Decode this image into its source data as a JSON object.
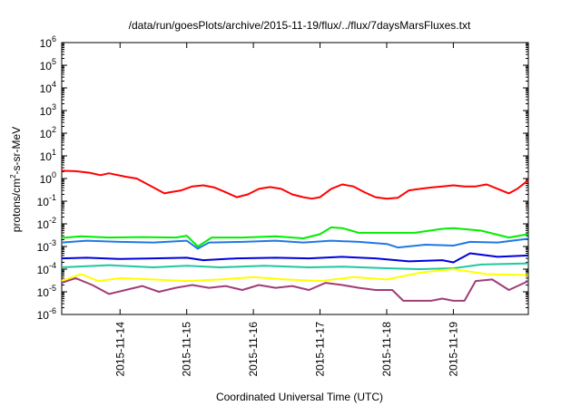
{
  "chart_data": {
    "type": "line",
    "title": "/data/run/goesPlots/archive/2015-11-19/flux/../flux/7daysMarsFluxes.txt",
    "xlabel": "Coordinated Universal Time (UTC)",
    "ylabel": "protons/cm²-s-sr-MeV",
    "ylabel_parts": {
      "base": "protons/cm",
      "sup": "2",
      "rest": "-s-sr-MeV"
    },
    "y_scale": "log",
    "ylim": [
      1e-06,
      1000000.0
    ],
    "y_ticks": [
      {
        "value": 1e-06,
        "base": "10",
        "exp": "-6"
      },
      {
        "value": 1e-05,
        "base": "10",
        "exp": "-5"
      },
      {
        "value": 0.0001,
        "base": "10",
        "exp": "-4"
      },
      {
        "value": 0.001,
        "base": "10",
        "exp": "-3"
      },
      {
        "value": 0.01,
        "base": "10",
        "exp": "-2"
      },
      {
        "value": 0.1,
        "base": "10",
        "exp": "-1"
      },
      {
        "value": 1,
        "base": "10",
        "exp": "0"
      },
      {
        "value": 10,
        "base": "10",
        "exp": "1"
      },
      {
        "value": 100,
        "base": "10",
        "exp": "2"
      },
      {
        "value": 1000,
        "base": "10",
        "exp": "3"
      },
      {
        "value": 10000,
        "base": "10",
        "exp": "4"
      },
      {
        "value": 100000,
        "base": "10",
        "exp": "5"
      },
      {
        "value": 1000000,
        "base": "10",
        "exp": "6"
      }
    ],
    "xlim": [
      "2015-11-13T03:00",
      "2015-11-20T03:00"
    ],
    "x_ticks": [
      "2015-11-14",
      "2015-11-15",
      "2015-11-16",
      "2015-11-17",
      "2015-11-18",
      "2015-11-19"
    ],
    "grid": false,
    "legend": "none",
    "series": [
      {
        "color": "#ff0000",
        "points": [
          [
            "2015-11-13T03:00",
            2.2
          ],
          [
            "2015-11-13T08:00",
            2.1
          ],
          [
            "2015-11-13T13:00",
            1.8
          ],
          [
            "2015-11-13T17:00",
            1.4
          ],
          [
            "2015-11-13T20:00",
            1.7
          ],
          [
            "2015-11-14T02:00",
            1.2
          ],
          [
            "2015-11-14T06:00",
            1.0
          ],
          [
            "2015-11-14T10:00",
            0.55
          ],
          [
            "2015-11-14T14:00",
            0.3
          ],
          [
            "2015-11-14T16:00",
            0.22
          ],
          [
            "2015-11-14T18:00",
            0.25
          ],
          [
            "2015-11-14T22:00",
            0.3
          ],
          [
            "2015-11-15T02:00",
            0.45
          ],
          [
            "2015-11-15T06:00",
            0.5
          ],
          [
            "2015-11-15T10:00",
            0.4
          ],
          [
            "2015-11-15T14:00",
            0.25
          ],
          [
            "2015-11-15T18:00",
            0.15
          ],
          [
            "2015-11-15T22:00",
            0.2
          ],
          [
            "2015-11-16T02:00",
            0.35
          ],
          [
            "2015-11-16T06:00",
            0.42
          ],
          [
            "2015-11-16T10:00",
            0.35
          ],
          [
            "2015-11-16T14:00",
            0.2
          ],
          [
            "2015-11-16T18:00",
            0.15
          ],
          [
            "2015-11-16T21:00",
            0.13
          ],
          [
            "2015-11-17T00:00",
            0.15
          ],
          [
            "2015-11-17T04:00",
            0.35
          ],
          [
            "2015-11-17T08:00",
            0.55
          ],
          [
            "2015-11-17T12:00",
            0.45
          ],
          [
            "2015-11-17T16:00",
            0.25
          ],
          [
            "2015-11-17T20:00",
            0.15
          ],
          [
            "2015-11-18T00:00",
            0.13
          ],
          [
            "2015-11-18T04:00",
            0.14
          ],
          [
            "2015-11-18T08:00",
            0.3
          ],
          [
            "2015-11-18T12:00",
            0.35
          ],
          [
            "2015-11-18T16:00",
            0.4
          ],
          [
            "2015-11-18T20:00",
            0.45
          ],
          [
            "2015-11-19T00:00",
            0.5
          ],
          [
            "2015-11-19T04:00",
            0.45
          ],
          [
            "2015-11-19T08:00",
            0.45
          ],
          [
            "2015-11-19T12:00",
            0.55
          ],
          [
            "2015-11-19T16:00",
            0.35
          ],
          [
            "2015-11-19T20:00",
            0.22
          ],
          [
            "2015-11-19T23:00",
            0.35
          ],
          [
            "2015-11-20T03:00",
            0.85
          ]
        ]
      },
      {
        "color": "#00ee00",
        "points": [
          [
            "2015-11-13T03:00",
            0.0024
          ],
          [
            "2015-11-13T10:00",
            0.0028
          ],
          [
            "2015-11-13T20:00",
            0.0025
          ],
          [
            "2015-11-14T08:00",
            0.0026
          ],
          [
            "2015-11-14T20:00",
            0.0025
          ],
          [
            "2015-11-15T00:00",
            0.003
          ],
          [
            "2015-11-15T04:00",
            0.001
          ],
          [
            "2015-11-15T09:00",
            0.0025
          ],
          [
            "2015-11-15T20:00",
            0.0025
          ],
          [
            "2015-11-16T08:00",
            0.0028
          ],
          [
            "2015-11-16T18:00",
            0.0023
          ],
          [
            "2015-11-17T00:00",
            0.0035
          ],
          [
            "2015-11-17T04:00",
            0.007
          ],
          [
            "2015-11-17T08:00",
            0.0065
          ],
          [
            "2015-11-17T14:00",
            0.004
          ],
          [
            "2015-11-17T22:00",
            0.004
          ],
          [
            "2015-11-18T10:00",
            0.004
          ],
          [
            "2015-11-18T20:00",
            0.006
          ],
          [
            "2015-11-19T00:00",
            0.0065
          ],
          [
            "2015-11-19T10:00",
            0.005
          ],
          [
            "2015-11-19T20:00",
            0.0025
          ],
          [
            "2015-11-20T03:00",
            0.0035
          ]
        ]
      },
      {
        "color": "#1e78e6",
        "points": [
          [
            "2015-11-13T03:00",
            0.0015
          ],
          [
            "2015-11-13T12:00",
            0.0018
          ],
          [
            "2015-11-14T00:00",
            0.0016
          ],
          [
            "2015-11-14T12:00",
            0.0015
          ],
          [
            "2015-11-15T00:00",
            0.0018
          ],
          [
            "2015-11-15T04:00",
            0.0008
          ],
          [
            "2015-11-15T08:00",
            0.0015
          ],
          [
            "2015-11-15T20:00",
            0.0016
          ],
          [
            "2015-11-16T08:00",
            0.0018
          ],
          [
            "2015-11-16T18:00",
            0.0015
          ],
          [
            "2015-11-17T04:00",
            0.0018
          ],
          [
            "2015-11-17T14:00",
            0.0016
          ],
          [
            "2015-11-18T00:00",
            0.0013
          ],
          [
            "2015-11-18T04:00",
            0.0009
          ],
          [
            "2015-11-18T14:00",
            0.0012
          ],
          [
            "2015-11-19T00:00",
            0.0011
          ],
          [
            "2015-11-19T06:00",
            0.0016
          ],
          [
            "2015-11-19T16:00",
            0.0015
          ],
          [
            "2015-11-20T03:00",
            0.0022
          ]
        ]
      },
      {
        "color": "#0000dd",
        "points": [
          [
            "2015-11-13T03:00",
            0.0003
          ],
          [
            "2015-11-13T12:00",
            0.00032
          ],
          [
            "2015-11-14T00:00",
            0.00028
          ],
          [
            "2015-11-14T12:00",
            0.0003
          ],
          [
            "2015-11-15T00:00",
            0.00032
          ],
          [
            "2015-11-15T06:00",
            0.00025
          ],
          [
            "2015-11-15T18:00",
            0.0003
          ],
          [
            "2015-11-16T08:00",
            0.00032
          ],
          [
            "2015-11-16T20:00",
            0.0003
          ],
          [
            "2015-11-17T08:00",
            0.00035
          ],
          [
            "2015-11-17T20:00",
            0.0003
          ],
          [
            "2015-11-18T08:00",
            0.00022
          ],
          [
            "2015-11-18T20:00",
            0.00025
          ],
          [
            "2015-11-19T00:00",
            0.0002
          ],
          [
            "2015-11-19T06:00",
            0.0005
          ],
          [
            "2015-11-19T16:00",
            0.00035
          ],
          [
            "2015-11-20T03:00",
            0.0004
          ]
        ]
      },
      {
        "color": "#20c8a0",
        "points": [
          [
            "2015-11-13T03:00",
            0.00012
          ],
          [
            "2015-11-13T20:00",
            0.00015
          ],
          [
            "2015-11-14T12:00",
            0.00012
          ],
          [
            "2015-11-15T00:00",
            0.00014
          ],
          [
            "2015-11-15T12:00",
            0.00012
          ],
          [
            "2015-11-16T04:00",
            0.00014
          ],
          [
            "2015-11-16T20:00",
            0.00012
          ],
          [
            "2015-11-17T08:00",
            0.00013
          ],
          [
            "2015-11-18T00:00",
            0.00011
          ],
          [
            "2015-11-18T12:00",
            0.0001
          ],
          [
            "2015-11-19T00:00",
            0.00011
          ],
          [
            "2015-11-19T10:00",
            0.00016
          ],
          [
            "2015-11-20T03:00",
            0.00018
          ]
        ]
      },
      {
        "color": "#ffff00",
        "points": [
          [
            "2015-11-13T03:00",
            3e-05
          ],
          [
            "2015-11-13T10:00",
            6e-05
          ],
          [
            "2015-11-13T16:00",
            3e-05
          ],
          [
            "2015-11-14T00:00",
            4e-05
          ],
          [
            "2015-11-14T12:00",
            3.5e-05
          ],
          [
            "2015-11-15T00:00",
            3e-05
          ],
          [
            "2015-11-15T12:00",
            3.5e-05
          ],
          [
            "2015-11-16T00:00",
            4.5e-05
          ],
          [
            "2015-11-16T12:00",
            3.5e-05
          ],
          [
            "2015-11-17T00:00",
            3e-05
          ],
          [
            "2015-11-17T12:00",
            4.5e-05
          ],
          [
            "2015-11-18T00:00",
            3.5e-05
          ],
          [
            "2015-11-18T12:00",
            7e-05
          ],
          [
            "2015-11-19T00:00",
            0.0001
          ],
          [
            "2015-11-19T12:00",
            6e-05
          ],
          [
            "2015-11-20T03:00",
            5.5e-05
          ]
        ]
      },
      {
        "color": "#a03c78",
        "points": [
          [
            "2015-11-13T03:00",
            2.5e-05
          ],
          [
            "2015-11-13T08:00",
            4e-05
          ],
          [
            "2015-11-13T14:00",
            2e-05
          ],
          [
            "2015-11-13T20:00",
            8e-06
          ],
          [
            "2015-11-14T02:00",
            1.2e-05
          ],
          [
            "2015-11-14T08:00",
            1.8e-05
          ],
          [
            "2015-11-14T14:00",
            1e-05
          ],
          [
            "2015-11-14T20:00",
            1.5e-05
          ],
          [
            "2015-11-15T02:00",
            2e-05
          ],
          [
            "2015-11-15T08:00",
            1.5e-05
          ],
          [
            "2015-11-15T14:00",
            1.8e-05
          ],
          [
            "2015-11-15T20:00",
            1.2e-05
          ],
          [
            "2015-11-16T02:00",
            2e-05
          ],
          [
            "2015-11-16T08:00",
            1.5e-05
          ],
          [
            "2015-11-16T14:00",
            1.8e-05
          ],
          [
            "2015-11-16T20:00",
            1.2e-05
          ],
          [
            "2015-11-17T02:00",
            2.5e-05
          ],
          [
            "2015-11-17T08:00",
            2e-05
          ],
          [
            "2015-11-17T14:00",
            1.5e-05
          ],
          [
            "2015-11-17T20:00",
            1.2e-05
          ],
          [
            "2015-11-18T02:00",
            1.2e-05
          ],
          [
            "2015-11-18T06:00",
            4e-06
          ],
          [
            "2015-11-18T16:00",
            4e-06
          ],
          [
            "2015-11-18T20:00",
            5e-06
          ],
          [
            "2015-11-19T00:00",
            4e-06
          ],
          [
            "2015-11-19T04:00",
            4e-06
          ],
          [
            "2015-11-19T08:00",
            3e-05
          ],
          [
            "2015-11-19T14:00",
            3.5e-05
          ],
          [
            "2015-11-19T20:00",
            1.2e-05
          ],
          [
            "2015-11-20T03:00",
            3e-05
          ]
        ]
      }
    ]
  }
}
